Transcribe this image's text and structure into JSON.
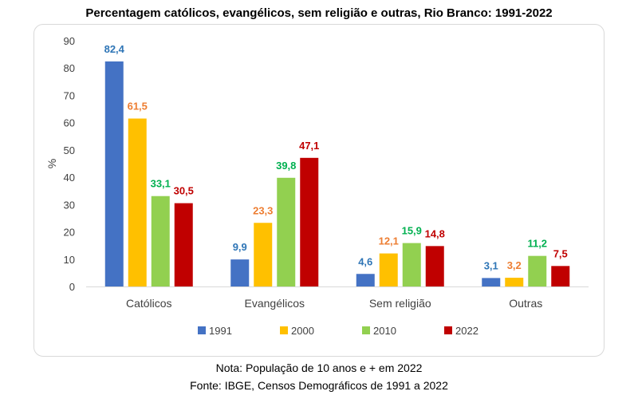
{
  "chart_data": {
    "type": "bar",
    "title": "Percentagem católicos, evangélicos, sem religião e outras, Rio Branco: 1991-2022",
    "xlabel": "",
    "ylabel": "%",
    "ylim": [
      0,
      90
    ],
    "yticks": [
      "0",
      "10",
      "20",
      "30",
      "40",
      "50",
      "60",
      "70",
      "80",
      "90"
    ],
    "grid": false,
    "legend_position": "bottom",
    "categories": [
      "Católicos",
      "Evangélicos",
      "Sem religião",
      "Outras"
    ],
    "series": [
      {
        "name": "1991",
        "color": "#4472c4",
        "values": [
          82.4,
          9.9,
          4.6,
          3.1
        ],
        "labels": [
          "82,4",
          "9,9",
          "4,6",
          "3,1"
        ]
      },
      {
        "name": "2000",
        "color": "#ffc000",
        "values": [
          61.5,
          23.3,
          12.1,
          3.2
        ],
        "labels": [
          "61,5",
          "23,3",
          "12,1",
          "3,2"
        ]
      },
      {
        "name": "2010",
        "color": "#92d050",
        "values": [
          33.1,
          39.8,
          15.9,
          11.2
        ],
        "labels": [
          "33,1",
          "39,8",
          "15,9",
          "11,2"
        ]
      },
      {
        "name": "2022",
        "color": "#c00000",
        "values": [
          30.5,
          47.1,
          14.8,
          7.5
        ],
        "labels": [
          "30,5",
          "47,1",
          "14,8",
          "7,5"
        ]
      }
    ],
    "label_colors": [
      "#2e75b6",
      "#ed7d31",
      "#00b050",
      "#c00000"
    ]
  },
  "footnotes": {
    "note": "Nota: População de 10 anos e + em 2022",
    "source": "Fonte: IBGE, Censos Demográficos de 1991 a 2022"
  }
}
